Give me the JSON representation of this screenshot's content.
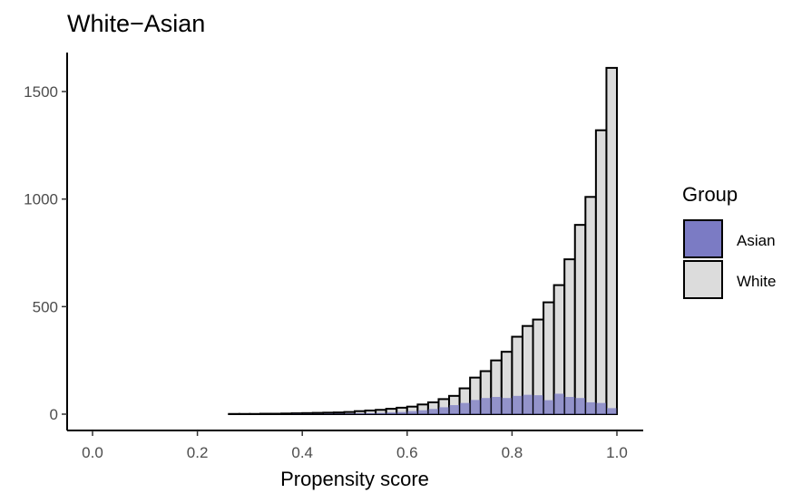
{
  "chart_data": {
    "type": "bar",
    "title": "White−Asian",
    "xlabel": "Propensity score",
    "ylabel": "",
    "xlim": [
      -0.05,
      1.05
    ],
    "ylim": [
      -60,
      1700
    ],
    "x_ticks": [
      "0.0",
      "0.2",
      "0.4",
      "0.6",
      "0.8",
      "1.0"
    ],
    "y_ticks": [
      "0",
      "500",
      "1000",
      "1500"
    ],
    "bin_width": 0.02,
    "x": [
      0.01,
      0.03,
      0.05,
      0.07,
      0.09,
      0.11,
      0.13,
      0.15,
      0.17,
      0.19,
      0.21,
      0.23,
      0.25,
      0.27,
      0.29,
      0.31,
      0.33,
      0.35,
      0.37,
      0.39,
      0.41,
      0.43,
      0.45,
      0.47,
      0.49,
      0.51,
      0.53,
      0.55,
      0.57,
      0.59,
      0.61,
      0.63,
      0.65,
      0.67,
      0.69,
      0.71,
      0.73,
      0.75,
      0.77,
      0.79,
      0.81,
      0.83,
      0.85,
      0.87,
      0.89,
      0.91,
      0.93,
      0.95,
      0.97,
      0.99
    ],
    "series": [
      {
        "name": "White",
        "color": "#dcdcdc",
        "values": [
          0,
          0,
          0,
          0,
          0,
          0,
          0,
          0,
          0,
          0,
          0,
          0,
          0,
          1,
          1,
          1,
          2,
          2,
          3,
          4,
          5,
          6,
          7,
          8,
          10,
          14,
          17,
          20,
          25,
          30,
          35,
          45,
          55,
          70,
          85,
          120,
          170,
          200,
          250,
          290,
          360,
          410,
          440,
          520,
          600,
          720,
          880,
          1010,
          1320,
          1610
        ]
      },
      {
        "name": "Asian",
        "color": "#7b7bc4",
        "values": [
          0,
          0,
          0,
          0,
          0,
          0,
          0,
          0,
          0,
          0,
          0,
          0,
          0,
          0,
          0,
          0,
          0,
          0,
          0,
          1,
          1,
          1,
          2,
          2,
          3,
          4,
          5,
          6,
          8,
          10,
          14,
          18,
          24,
          32,
          42,
          52,
          66,
          75,
          80,
          75,
          85,
          90,
          88,
          65,
          95,
          80,
          75,
          55,
          52,
          28
        ]
      }
    ],
    "legend": {
      "title": "Group",
      "position": "right",
      "entries": [
        {
          "label": "Asian",
          "color": "#7b7bc4"
        },
        {
          "label": "White",
          "color": "#dcdcdc"
        }
      ]
    },
    "grid": false
  }
}
